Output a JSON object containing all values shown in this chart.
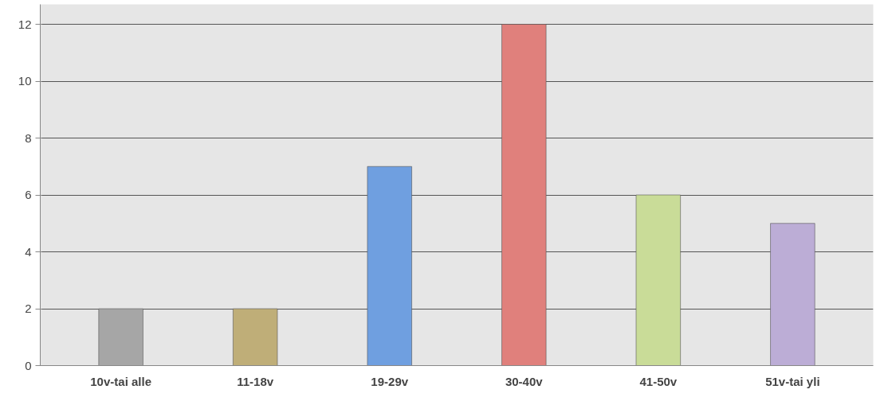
{
  "chart_data": {
    "type": "bar",
    "categories": [
      "10v-tai alle",
      "11-18v",
      "19-29v",
      "30-40v",
      "41-50v",
      "51v-tai yli"
    ],
    "values": [
      2,
      2,
      7,
      12,
      6,
      5
    ],
    "colors": [
      "#a6a6a6",
      "#bfae78",
      "#6f9fe0",
      "#e0807c",
      "#c9dc98",
      "#bcadd6"
    ],
    "ylim": [
      0,
      12.7
    ],
    "yticks": [
      0,
      2,
      4,
      6,
      8,
      10,
      12
    ],
    "grid": "y"
  }
}
